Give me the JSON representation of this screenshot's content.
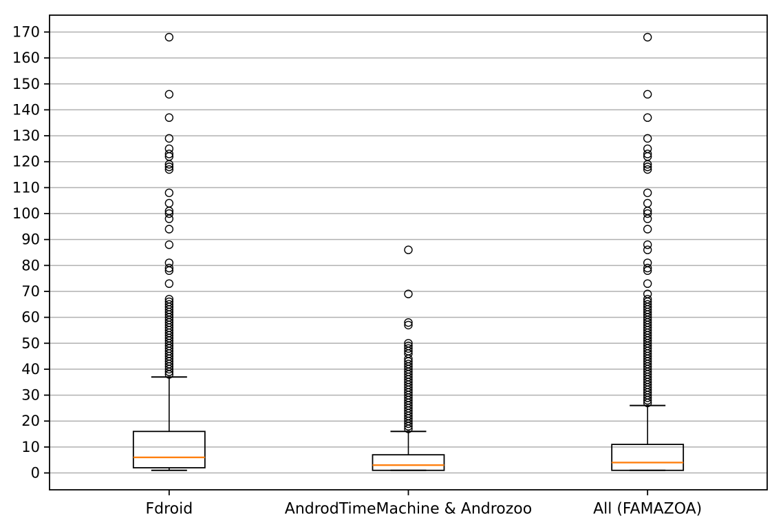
{
  "chart_data": {
    "type": "boxplot",
    "title": "",
    "xlabel": "",
    "ylabel": "",
    "grid": true,
    "legend": false,
    "ylim": [
      -6.5,
      176.5
    ],
    "yticks": [
      0,
      10,
      20,
      30,
      40,
      50,
      60,
      70,
      80,
      90,
      100,
      110,
      120,
      130,
      140,
      150,
      160,
      170
    ],
    "categories": [
      "Fdroid",
      "AndrodTimeMachine & Androzoo",
      "All (FAMAZOA)"
    ],
    "series": [
      {
        "name": "Fdroid",
        "whislo": 1,
        "q1": 2,
        "med": 6,
        "q3": 16,
        "whishi": 37,
        "outliers": [
          38,
          39,
          40,
          41,
          42,
          43,
          44,
          45,
          46,
          47,
          48,
          49,
          50,
          51,
          52,
          53,
          54,
          55,
          56,
          57,
          58,
          59,
          60,
          61,
          62,
          63,
          64,
          65,
          66,
          67,
          73,
          78,
          79,
          81,
          88,
          94,
          98,
          100,
          101,
          104,
          108,
          117,
          118,
          119,
          122,
          123,
          125,
          129,
          137,
          146,
          168
        ]
      },
      {
        "name": "AndrodTimeMachine & Androzoo",
        "whislo": 1,
        "q1": 1,
        "med": 3,
        "q3": 7,
        "whishi": 16,
        "outliers": [
          17,
          18,
          19,
          20,
          21,
          22,
          23,
          24,
          25,
          26,
          27,
          28,
          29,
          30,
          31,
          32,
          33,
          34,
          35,
          36,
          37,
          38,
          39,
          40,
          41,
          42,
          43,
          44,
          46,
          47,
          48,
          49,
          50,
          57,
          58,
          69,
          86
        ]
      },
      {
        "name": "All (FAMAZOA)",
        "whislo": 1,
        "q1": 1,
        "med": 4,
        "q3": 11,
        "whishi": 26,
        "outliers": [
          27,
          28,
          29,
          30,
          31,
          32,
          33,
          34,
          35,
          36,
          37,
          38,
          39,
          40,
          41,
          42,
          43,
          44,
          45,
          46,
          47,
          48,
          49,
          50,
          51,
          52,
          53,
          54,
          55,
          56,
          57,
          58,
          59,
          60,
          61,
          62,
          63,
          64,
          65,
          66,
          67,
          69,
          73,
          78,
          79,
          81,
          86,
          88,
          94,
          98,
          100,
          101,
          104,
          108,
          117,
          118,
          119,
          122,
          123,
          125,
          129,
          137,
          146,
          168
        ]
      }
    ],
    "colors": {
      "median": "#FF7F0E",
      "box_line": "#000000",
      "grid": "#B0B0B0",
      "background": "#FFFFFF",
      "text": "#000000"
    }
  }
}
